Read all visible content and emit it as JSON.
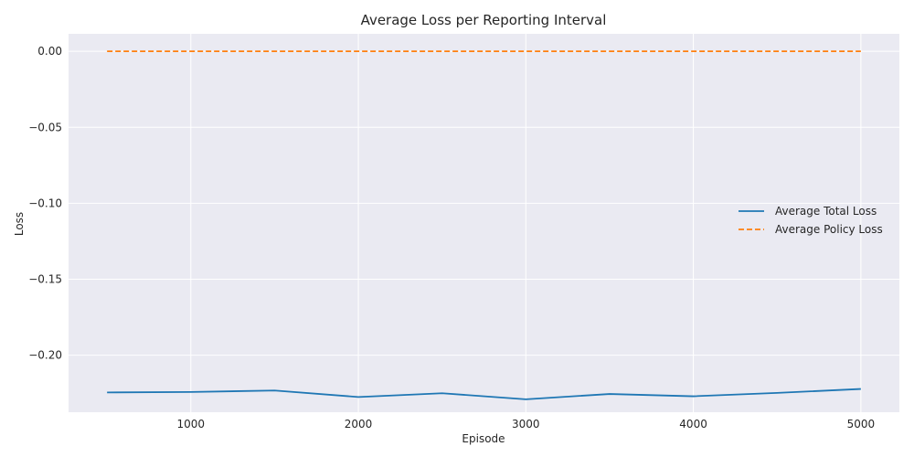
{
  "chart_data": {
    "type": "line",
    "title": "Average Loss per Reporting Interval",
    "xlabel": "Episode",
    "ylabel": "Loss",
    "x": [
      500,
      1000,
      1500,
      2000,
      2500,
      3000,
      3500,
      4000,
      4500,
      5000
    ],
    "series": [
      {
        "name": "Average Total Loss",
        "color": "#1f77b4",
        "style": "solid",
        "values": [
          -0.2245,
          -0.2242,
          -0.2232,
          -0.2275,
          -0.225,
          -0.229,
          -0.2255,
          -0.227,
          -0.2248,
          -0.2222
        ]
      },
      {
        "name": "Average Policy Loss",
        "color": "#ff7f0e",
        "style": "dashed",
        "values": [
          0.0,
          0.0,
          0.0,
          0.0,
          0.0,
          0.0,
          0.0,
          0.0,
          0.0,
          0.0
        ]
      }
    ],
    "xlim": [
      270,
      5230
    ],
    "ylim": [
      -0.2375,
      0.0115
    ],
    "xticks": [
      1000,
      2000,
      3000,
      4000,
      5000
    ],
    "xtick_labels": [
      "1000",
      "2000",
      "3000",
      "4000",
      "5000"
    ],
    "yticks": [
      0.0,
      -0.05,
      -0.1,
      -0.15,
      -0.2
    ],
    "ytick_labels": [
      "0.00",
      "−0.05",
      "−0.10",
      "−0.15",
      "−0.20"
    ],
    "grid": true,
    "legend_position": "center-right",
    "background_color": "#eaeaf2"
  }
}
